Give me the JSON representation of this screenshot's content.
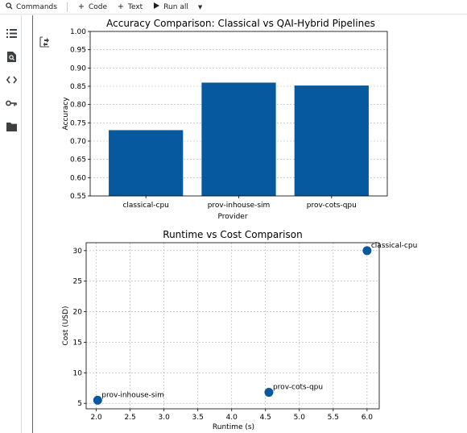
{
  "toolbar": {
    "commands_label": "Commands",
    "code_label": "Code",
    "text_label": "Text",
    "run_all_label": "Run all"
  },
  "icons": {
    "toc": "table-of-contents-icon",
    "find": "find-icon",
    "code": "code-snippets-icon",
    "secrets": "key-icon",
    "files": "folder-icon",
    "output": "output-toggle-icon"
  },
  "colors": {
    "bar": "#06599f",
    "point": "#06599f",
    "grid": "#b0b0b0"
  },
  "chart_data": [
    {
      "type": "bar",
      "title": "Accuracy Comparison: Classical vs QAI-Hybrid Pipelines",
      "xlabel": "Provider",
      "ylabel": "Accuracy",
      "categories": [
        "classical-cpu",
        "prov-inhouse-sim",
        "prov-cots-qpu"
      ],
      "values": [
        0.73,
        0.86,
        0.852
      ],
      "ylim": [
        0.55,
        1.0
      ],
      "yticks": [
        "0.55",
        "0.60",
        "0.65",
        "0.70",
        "0.75",
        "0.80",
        "0.85",
        "0.90",
        "0.95",
        "1.00"
      ],
      "grid": "y"
    },
    {
      "type": "scatter",
      "title": "Runtime vs Cost Comparison",
      "xlabel": "Runtime (s)",
      "ylabel": "Cost (USD)",
      "points": [
        {
          "label": "classical-cpu",
          "x": 6.0,
          "y": 30.0
        },
        {
          "label": "prov-inhouse-sim",
          "x": 2.02,
          "y": 5.5
        },
        {
          "label": "prov-cots-qpu",
          "x": 4.55,
          "y": 6.8
        }
      ],
      "xlim": [
        1.85,
        6.18
      ],
      "ylim": [
        4.1,
        31.3
      ],
      "xticks": [
        "2.0",
        "2.5",
        "3.0",
        "3.5",
        "4.0",
        "4.5",
        "5.0",
        "5.5",
        "6.0"
      ],
      "yticks": [
        "5",
        "10",
        "15",
        "20",
        "25",
        "30"
      ],
      "grid": "both"
    }
  ]
}
